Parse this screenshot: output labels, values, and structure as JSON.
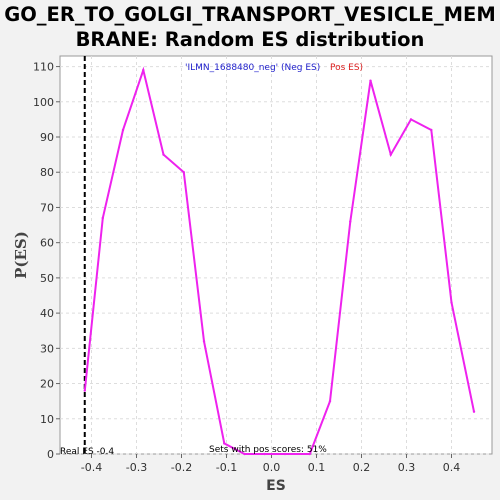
{
  "chart_data": {
    "type": "line",
    "title_line1": "GO_ER_TO_GOLGI_TRANSPORT_VESICLE_MEM",
    "title_line2": "BRANE: Random ES distribution",
    "xlabel": "ES",
    "ylabel": "P(ES)",
    "xlim": [
      -0.47,
      0.49
    ],
    "ylim": [
      0,
      113
    ],
    "xticks": [
      -0.4,
      -0.3,
      -0.2,
      -0.1,
      0.0,
      0.1,
      0.2,
      0.3,
      0.4
    ],
    "xtick_labels": [
      "-0.4",
      "-0.3",
      "-0.2",
      "-0.1",
      "0.0",
      "0.1",
      "0.2",
      "0.3",
      "0.4"
    ],
    "yticks": [
      0,
      10,
      20,
      30,
      40,
      50,
      60,
      70,
      80,
      90,
      100,
      110
    ],
    "ytick_labels": [
      "0",
      "10",
      "20",
      "30",
      "40",
      "50",
      "60",
      "70",
      "80",
      "90",
      "100",
      "110"
    ],
    "grid": true,
    "series": [
      {
        "color": "#ee22ee",
        "x": [
          -0.415,
          -0.375,
          -0.33,
          -0.285,
          -0.24,
          -0.195,
          -0.15,
          -0.105,
          -0.06,
          -0.015,
          0.03,
          0.085,
          0.13,
          0.175,
          0.22,
          0.265,
          0.31,
          0.355,
          0.4,
          0.45
        ],
        "y": [
          18,
          67,
          92,
          109,
          85,
          80,
          32,
          3,
          0,
          0,
          0,
          0,
          15,
          66,
          106,
          85,
          95,
          92,
          43,
          12
        ]
      }
    ],
    "real_es": -0.415,
    "real_es_label": "Real ES -0.4",
    "legend_neg": "'ILMN_1688480_neg' (Neg ES)",
    "legend_pos": "Pos ES)",
    "pos_scores_label": "Sets with pos scores: 51%",
    "colors": {
      "line": "#ee22ee",
      "neg_legend": "#2222cc",
      "pos_legend": "#dd2222",
      "real_es_line": "#000000"
    }
  }
}
